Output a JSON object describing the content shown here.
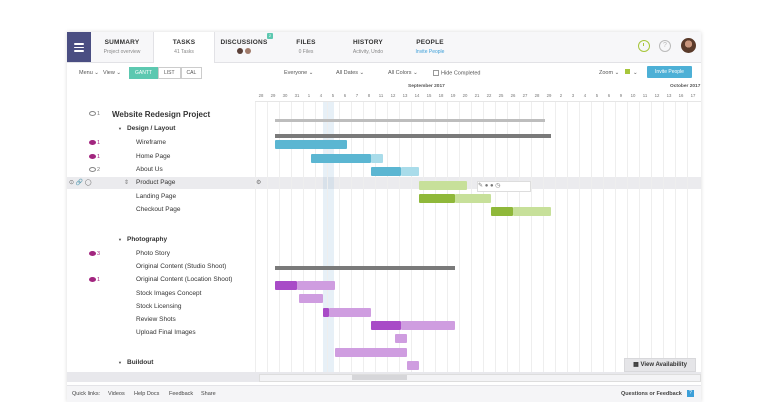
{
  "tabs": [
    {
      "title": "SUMMARY",
      "sub": "Project overview"
    },
    {
      "title": "TASKS",
      "sub": "41 Tasks"
    },
    {
      "title": "DISCUSSIONS",
      "sub": "",
      "badge": "2"
    },
    {
      "title": "FILES",
      "sub": "0 Files"
    },
    {
      "title": "HISTORY",
      "sub": "Activity, Undo"
    },
    {
      "title": "PEOPLE",
      "sub": "Invite People"
    }
  ],
  "toolbar": {
    "menu": "Menu",
    "view": "View",
    "views": [
      "GANTT",
      "LIST",
      "CAL"
    ],
    "everyone": "Everyone",
    "all_dates": "All Dates",
    "all_colors": "All Colors",
    "hide_completed": "Hide Completed",
    "zoom": "Zoom",
    "invite": "Invite People"
  },
  "timeline": {
    "months": [
      "September 2017",
      "October 2017"
    ],
    "days": [
      "28",
      "29",
      "30",
      "31",
      "1",
      "4",
      "5",
      "6",
      "7",
      "8",
      "11",
      "12",
      "13",
      "14",
      "15",
      "18",
      "19",
      "20",
      "21",
      "22",
      "25",
      "26",
      "27",
      "28",
      "29",
      "2",
      "3",
      "4",
      "5",
      "6",
      "9",
      "10",
      "11",
      "12",
      "13",
      "16",
      "17"
    ]
  },
  "project": {
    "title": "Website Redesign Project",
    "comments": "1"
  },
  "groups": [
    {
      "name": "Design / Layout",
      "tasks": [
        {
          "name": "Wireframe",
          "comments": "1"
        },
        {
          "name": "Home Page",
          "comments": "1"
        },
        {
          "name": "About Us",
          "comments": "2"
        },
        {
          "name": "Product Page",
          "comments": ""
        },
        {
          "name": "Landing Page",
          "comments": ""
        },
        {
          "name": "Checkout Page",
          "comments": ""
        }
      ]
    },
    {
      "name": "Photography",
      "tasks": [
        {
          "name": "Photo Story",
          "comments": "3"
        },
        {
          "name": "Original Content (Studio Shoot)",
          "comments": ""
        },
        {
          "name": "Original Content (Location Shoot)",
          "comments": "1"
        },
        {
          "name": "Stock Images Concept",
          "comments": ""
        },
        {
          "name": "Stock Licensing",
          "comments": ""
        },
        {
          "name": "Review Shots",
          "comments": ""
        },
        {
          "name": "Upload Final Images",
          "comments": ""
        }
      ]
    },
    {
      "name": "Buildout",
      "tasks": []
    }
  ],
  "colors": {
    "design": "#5bb6d2",
    "design_light": "#a9dcea",
    "green": "#8fb83a",
    "green_light": "#c7e09a",
    "purple": "#a84bc7",
    "purple_light": "#cf9de0"
  },
  "view_availability": "View Availability",
  "footer": {
    "quick_links": "Quick links:",
    "links": [
      "Videos",
      "Help Docs",
      "Feedback",
      "Share"
    ],
    "questions": "Questions or Feedback",
    "q_badge": "?"
  }
}
